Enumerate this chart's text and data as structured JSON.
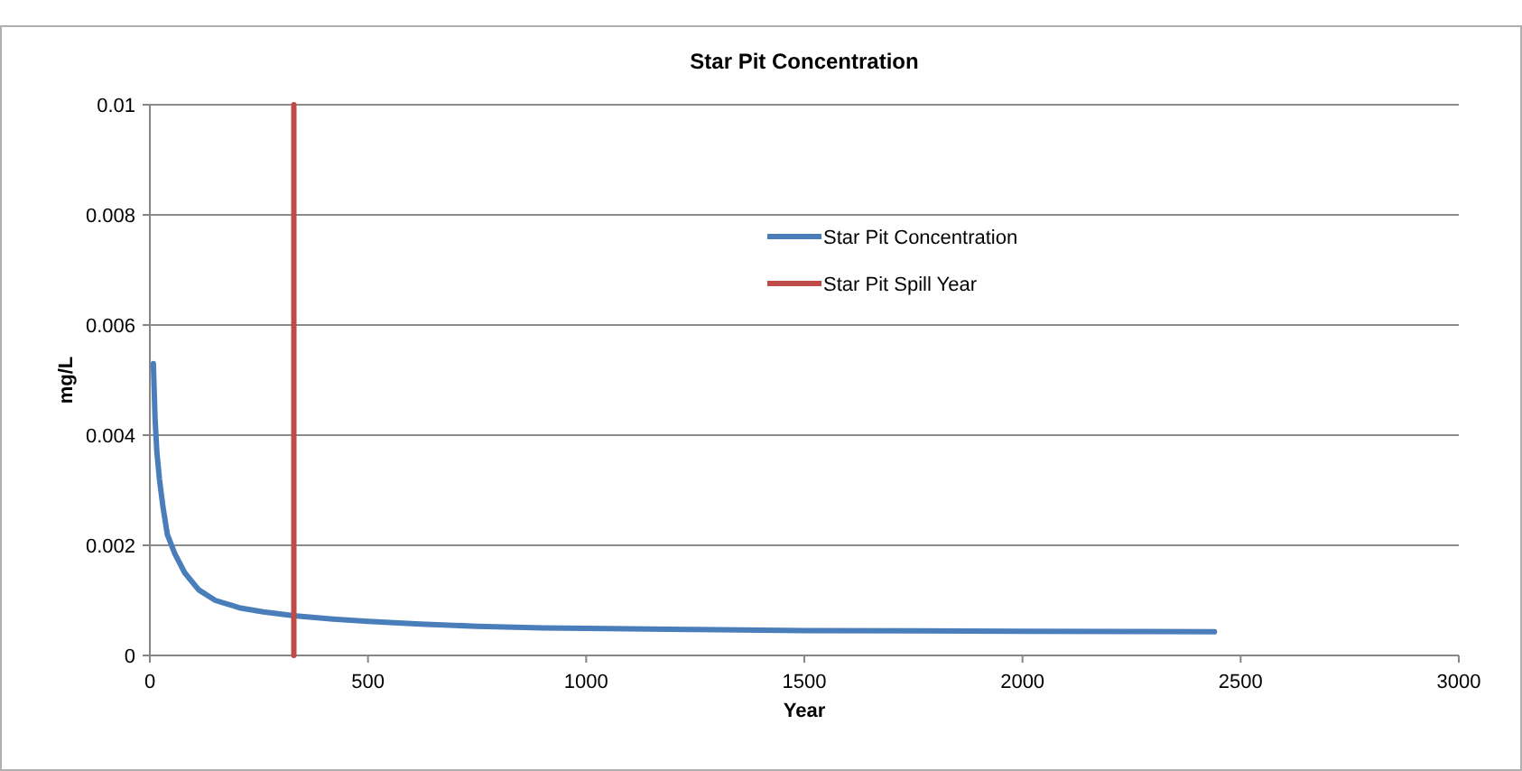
{
  "chart_data": {
    "type": "line",
    "title": "Star Pit Concentration",
    "xlabel": "Year",
    "ylabel": "mg/L",
    "xlim": [
      0,
      3000
    ],
    "xticks": [
      0,
      500,
      1000,
      1500,
      2000,
      2500,
      3000
    ],
    "ylim": [
      0,
      0.01
    ],
    "yticks": [
      0,
      0.002,
      0.004,
      0.006,
      0.008,
      0.01
    ],
    "grid": "y",
    "legend": "right",
    "marker": "none",
    "line_style": "solid",
    "series": [
      {
        "name": "Star Pit Concentration",
        "color": "#4a7ebb",
        "x": [
          8,
          12,
          16,
          22,
          30,
          40,
          57,
          80,
          112,
          150,
          208,
          260,
          330,
          420,
          500,
          620,
          750,
          900,
          1000,
          1250,
          1500,
          1750,
          2000,
          2250,
          2440
        ],
        "values": [
          0.0053,
          0.0043,
          0.0037,
          0.0032,
          0.0027,
          0.0022,
          0.00185,
          0.0015,
          0.00119,
          0.001,
          0.00086,
          0.00079,
          0.00072,
          0.00066,
          0.00062,
          0.00057,
          0.00053,
          0.0005,
          0.00049,
          0.00047,
          0.00045,
          0.000445,
          0.00044,
          0.000435,
          0.00043
        ]
      },
      {
        "name": "Star Pit Spill Year",
        "color": "#be4b48",
        "x": [
          330,
          330
        ],
        "values": [
          0,
          0.01
        ]
      }
    ]
  }
}
